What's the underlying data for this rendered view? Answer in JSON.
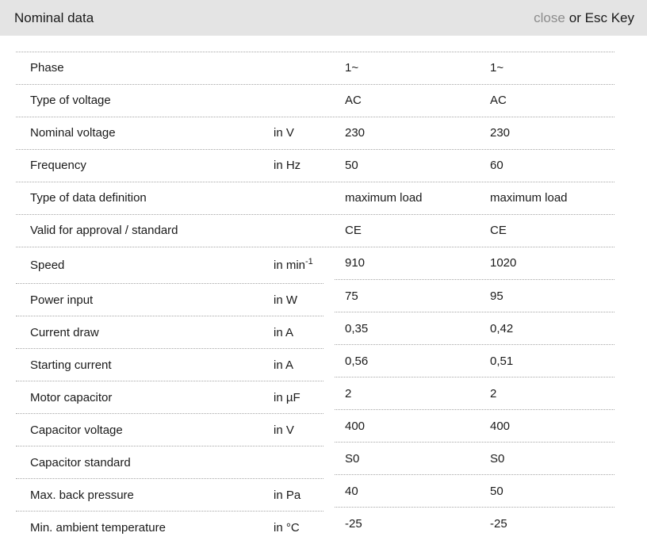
{
  "header": {
    "title": "Nominal data",
    "close_label": "close",
    "esc_hint": "or Esc Key"
  },
  "colors": {
    "header_bg": "#e4e4e4",
    "close_link": "#8c8c8c",
    "separator": "#a6a6a6",
    "text": "#1a1a1a"
  },
  "table": {
    "rows": [
      {
        "label": "Phase",
        "unit": "",
        "unit_sup": "",
        "values": [
          "1~",
          "1~"
        ]
      },
      {
        "label": "Type of voltage",
        "unit": "",
        "unit_sup": "",
        "values": [
          "AC",
          "AC"
        ]
      },
      {
        "label": "Nominal voltage",
        "unit": "in V",
        "unit_sup": "",
        "values": [
          "230",
          "230"
        ]
      },
      {
        "label": "Frequency",
        "unit": "in Hz",
        "unit_sup": "",
        "values": [
          "50",
          "60"
        ]
      },
      {
        "label": "Type of data definition",
        "unit": "",
        "unit_sup": "",
        "values": [
          "maximum load",
          "maximum load"
        ]
      },
      {
        "label": "Valid for approval / standard",
        "unit": "",
        "unit_sup": "",
        "values": [
          "CE",
          "CE"
        ]
      },
      {
        "label": "Speed",
        "unit": "in min",
        "unit_sup": "-1",
        "values": [
          "910",
          "1020"
        ]
      },
      {
        "label": "Power input",
        "unit": "in W",
        "unit_sup": "",
        "values": [
          "75",
          "95"
        ]
      },
      {
        "label": "Current draw",
        "unit": "in A",
        "unit_sup": "",
        "values": [
          "0,35",
          "0,42"
        ]
      },
      {
        "label": "Starting current",
        "unit": "in A",
        "unit_sup": "",
        "values": [
          "0,56",
          "0,51"
        ]
      },
      {
        "label": "Motor capacitor",
        "unit": "in µF",
        "unit_sup": "",
        "values": [
          "2",
          "2"
        ]
      },
      {
        "label": "Capacitor voltage",
        "unit": "in V",
        "unit_sup": "",
        "values": [
          "400",
          "400"
        ]
      },
      {
        "label": "Capacitor standard",
        "unit": "",
        "unit_sup": "",
        "values": [
          "S0",
          "S0"
        ]
      },
      {
        "label": "Max. back pressure",
        "unit": "in Pa",
        "unit_sup": "",
        "values": [
          "40",
          "50"
        ]
      },
      {
        "label": "Min. ambient temperature",
        "unit": "in °C",
        "unit_sup": "",
        "values": [
          "-25",
          "-25"
        ]
      }
    ]
  }
}
